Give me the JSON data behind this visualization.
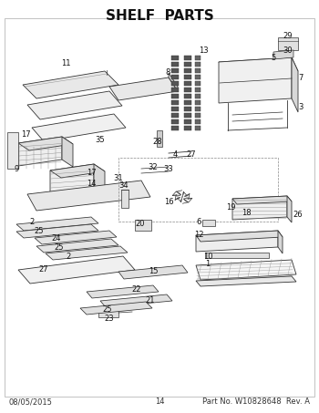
{
  "title": "SHELF  PARTS",
  "title_fontsize": 11,
  "title_fontweight": "bold",
  "footer_left": "08/05/2015",
  "footer_center": "14",
  "footer_right": "Part No. W10828648  Rev. A",
  "footer_fontsize": 6.0,
  "bg_color": "#ffffff",
  "fig_width": 3.5,
  "fig_height": 4.53,
  "dpi": 100
}
